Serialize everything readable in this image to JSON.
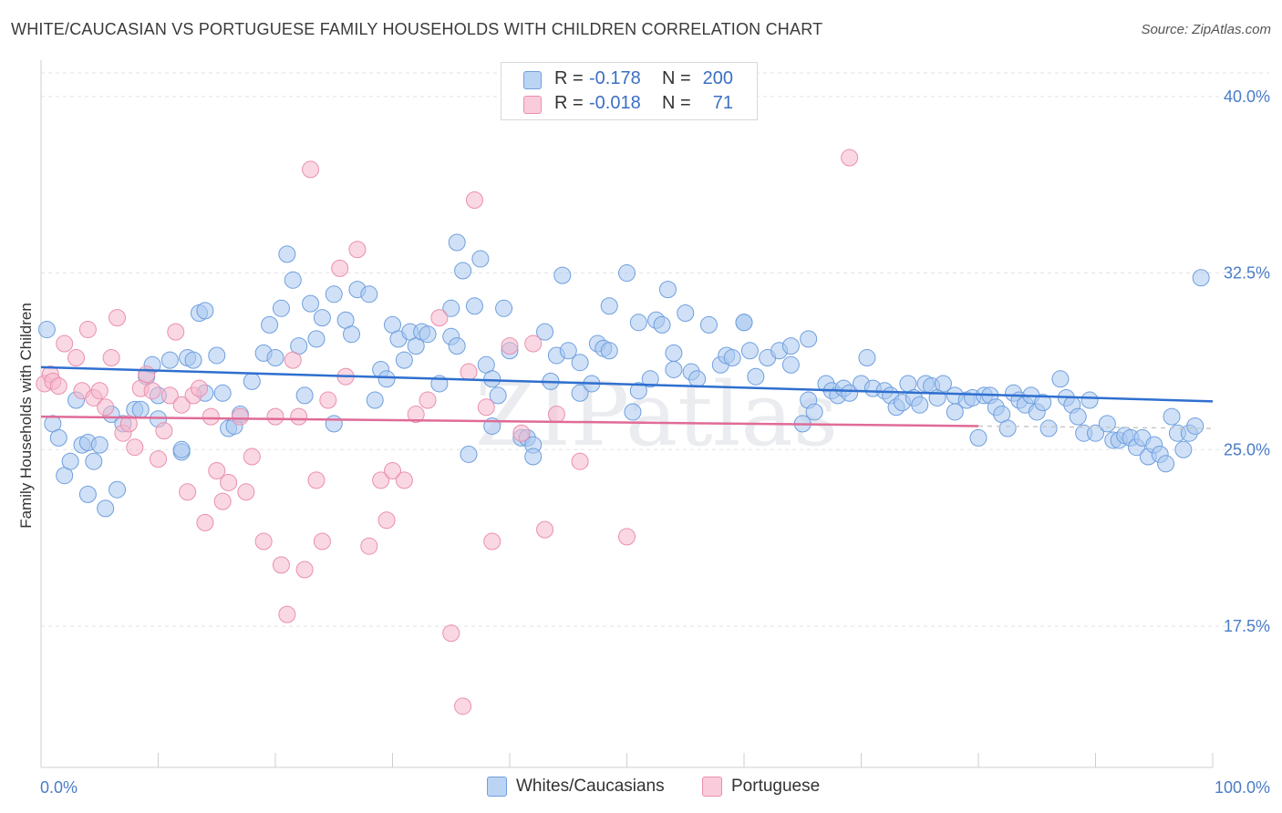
{
  "title": "WHITE/CAUCASIAN VS PORTUGUESE FAMILY HOUSEHOLDS WITH CHILDREN CORRELATION CHART",
  "source": "Source: ZipAtlas.com",
  "watermark": "ZIPatlas",
  "legend": {
    "r_label": "R =",
    "n_label": "N =",
    "rows": [
      {
        "name": "Whites/Caucasians",
        "r": "-0.178",
        "n": "200",
        "color": "#a9c8f0"
      },
      {
        "name": "Portuguese",
        "r": "-0.018",
        "n": "71",
        "color": "#f6b8cc"
      }
    ]
  },
  "chart_data": {
    "type": "scatter",
    "title": "WHITE/CAUCASIAN VS PORTUGUESE FAMILY HOUSEHOLDS WITH CHILDREN CORRELATION CHART",
    "xlabel": "",
    "ylabel": "Family Households with Children",
    "xlim": [
      0,
      100
    ],
    "ylim": [
      11.5,
      41.0
    ],
    "x_tick_labels": [
      "0.0%",
      "100.0%"
    ],
    "y_ticks": [
      {
        "value": 17.5,
        "label": "17.5%"
      },
      {
        "value": 25.0,
        "label": "25.0%"
      },
      {
        "value": 32.5,
        "label": "32.5%"
      },
      {
        "value": 40.0,
        "label": "40.0%"
      }
    ],
    "grid": true,
    "series": [
      {
        "name": "Whites/Caucasians",
        "color": "#a9c8f0",
        "stroke": "#6f9fde",
        "line_color": "#2f6fcf",
        "trend": {
          "x": [
            0,
            100
          ],
          "y": [
            28.5,
            27.05
          ]
        },
        "points": [
          [
            0.5,
            30.1
          ],
          [
            1,
            26.1
          ],
          [
            1.5,
            25.5
          ],
          [
            2,
            23.9
          ],
          [
            2.5,
            24.5
          ],
          [
            3,
            27.1
          ],
          [
            3.5,
            25.2
          ],
          [
            4,
            25.3
          ],
          [
            4,
            23.1
          ],
          [
            4.5,
            24.5
          ],
          [
            5,
            25.2
          ],
          [
            5.5,
            22.5
          ],
          [
            6,
            26.5
          ],
          [
            6.5,
            23.3
          ],
          [
            7,
            26.1
          ],
          [
            8,
            26.7
          ],
          [
            8.5,
            26.7
          ],
          [
            9,
            28.1
          ],
          [
            9.5,
            28.6
          ],
          [
            10,
            27.3
          ],
          [
            10,
            26.3
          ],
          [
            11,
            28.8
          ],
          [
            12,
            24.9
          ],
          [
            12,
            25
          ],
          [
            12.5,
            28.9
          ],
          [
            13,
            28.8
          ],
          [
            13.5,
            30.8
          ],
          [
            14,
            27.4
          ],
          [
            14,
            30.9
          ],
          [
            15,
            29
          ],
          [
            15.5,
            27.4
          ],
          [
            16,
            25.9
          ],
          [
            16.5,
            26
          ],
          [
            17,
            26.5
          ],
          [
            18,
            27.9
          ],
          [
            19,
            29.1
          ],
          [
            19.5,
            30.3
          ],
          [
            20,
            28.9
          ],
          [
            20.5,
            31
          ],
          [
            21,
            33.3
          ],
          [
            21.5,
            32.2
          ],
          [
            22,
            29.4
          ],
          [
            22.5,
            27.3
          ],
          [
            23,
            31.2
          ],
          [
            23.5,
            29.7
          ],
          [
            24,
            30.6
          ],
          [
            25,
            26.1
          ],
          [
            25,
            31.6
          ],
          [
            26,
            30.5
          ],
          [
            26.5,
            29.9
          ],
          [
            27,
            31.8
          ],
          [
            28,
            31.6
          ],
          [
            28.5,
            27.1
          ],
          [
            29,
            28.4
          ],
          [
            29.5,
            28
          ],
          [
            30,
            30.3
          ],
          [
            30.5,
            29.7
          ],
          [
            31,
            28.8
          ],
          [
            31.5,
            30
          ],
          [
            32,
            29.4
          ],
          [
            32.5,
            30
          ],
          [
            33,
            29.9
          ],
          [
            34,
            27.8
          ],
          [
            35,
            31
          ],
          [
            35,
            29.8
          ],
          [
            35.5,
            29.4
          ],
          [
            35.5,
            33.8
          ],
          [
            36,
            32.6
          ],
          [
            36.5,
            24.8
          ],
          [
            37,
            31.1
          ],
          [
            37.5,
            33.1
          ],
          [
            38,
            28.6
          ],
          [
            38.5,
            26
          ],
          [
            38.5,
            28
          ],
          [
            39,
            27.3
          ],
          [
            39.5,
            31
          ],
          [
            40,
            29.2
          ],
          [
            41,
            25.5
          ],
          [
            41.5,
            25.5
          ],
          [
            42,
            25.2
          ],
          [
            42,
            24.7
          ],
          [
            43,
            30
          ],
          [
            43.5,
            27.9
          ],
          [
            44,
            29
          ],
          [
            44.5,
            32.4
          ],
          [
            45,
            29.2
          ],
          [
            46,
            27.4
          ],
          [
            46,
            28.7
          ],
          [
            47,
            27.8
          ],
          [
            47.5,
            29.5
          ],
          [
            48,
            29.3
          ],
          [
            48.5,
            31.1
          ],
          [
            48.5,
            29.2
          ],
          [
            50,
            32.5
          ],
          [
            50.5,
            26.6
          ],
          [
            51,
            30.4
          ],
          [
            51,
            27.5
          ],
          [
            52,
            28
          ],
          [
            52.5,
            30.5
          ],
          [
            53,
            30.3
          ],
          [
            53.5,
            31.8
          ],
          [
            54,
            28.4
          ],
          [
            54,
            29.1
          ],
          [
            55,
            30.8
          ],
          [
            55.5,
            28.3
          ],
          [
            56,
            28
          ],
          [
            57,
            30.3
          ],
          [
            58,
            28.6
          ],
          [
            58.5,
            29
          ],
          [
            59,
            28.9
          ],
          [
            60,
            30.4
          ],
          [
            60,
            30.4
          ],
          [
            60.5,
            29.2
          ],
          [
            61,
            28.1
          ],
          [
            62,
            28.9
          ],
          [
            63,
            29.2
          ],
          [
            64,
            29.4
          ],
          [
            64,
            28.6
          ],
          [
            65,
            26.1
          ],
          [
            65.5,
            27.1
          ],
          [
            65.5,
            29.7
          ],
          [
            66,
            26.6
          ],
          [
            67,
            27.8
          ],
          [
            67.5,
            27.5
          ],
          [
            68,
            27.3
          ],
          [
            68.5,
            27.6
          ],
          [
            69,
            27.4
          ],
          [
            70,
            27.8
          ],
          [
            70.5,
            28.9
          ],
          [
            71,
            27.6
          ],
          [
            72,
            27.5
          ],
          [
            72.5,
            27.3
          ],
          [
            73,
            26.8
          ],
          [
            73.5,
            27
          ],
          [
            74,
            27.8
          ],
          [
            74.5,
            27.2
          ],
          [
            75,
            26.9
          ],
          [
            75.5,
            27.8
          ],
          [
            76,
            27.7
          ],
          [
            76.5,
            27.2
          ],
          [
            77,
            27.8
          ],
          [
            78,
            27.3
          ],
          [
            78,
            26.6
          ],
          [
            79,
            27.1
          ],
          [
            79.5,
            27.2
          ],
          [
            80,
            25.5
          ],
          [
            80.5,
            27.3
          ],
          [
            81,
            27.3
          ],
          [
            81.5,
            26.8
          ],
          [
            82,
            26.5
          ],
          [
            82.5,
            25.9
          ],
          [
            83,
            27.4
          ],
          [
            83.5,
            27.1
          ],
          [
            84,
            26.9
          ],
          [
            84.5,
            27.3
          ],
          [
            85,
            26.6
          ],
          [
            85.5,
            27
          ],
          [
            86,
            25.9
          ],
          [
            87,
            28
          ],
          [
            87.5,
            27.2
          ],
          [
            88,
            26.9
          ],
          [
            88.5,
            26.4
          ],
          [
            89,
            25.7
          ],
          [
            89.5,
            27.1
          ],
          [
            90,
            25.7
          ],
          [
            91,
            26.1
          ],
          [
            91.5,
            25.4
          ],
          [
            92,
            25.4
          ],
          [
            92.5,
            25.6
          ],
          [
            93,
            25.5
          ],
          [
            93.5,
            25.1
          ],
          [
            94,
            25.5
          ],
          [
            94.5,
            24.7
          ],
          [
            95,
            25.2
          ],
          [
            95.5,
            24.8
          ],
          [
            96,
            24.4
          ],
          [
            96.5,
            26.4
          ],
          [
            97,
            25.7
          ],
          [
            97.5,
            25
          ],
          [
            98,
            25.7
          ],
          [
            98.5,
            26
          ],
          [
            99,
            32.3
          ]
        ]
      },
      {
        "name": "Portuguese",
        "color": "#f6b8cc",
        "stroke": "#ea8fae",
        "line_color": "#e06b97",
        "trend": {
          "x": [
            0,
            80
          ],
          "y": [
            26.4,
            26.0
          ]
        },
        "points": [
          [
            0.3,
            27.8
          ],
          [
            0.8,
            28.2
          ],
          [
            1,
            27.9
          ],
          [
            1.5,
            27.7
          ],
          [
            2,
            29.5
          ],
          [
            3,
            28.9
          ],
          [
            3.5,
            27.5
          ],
          [
            4,
            30.1
          ],
          [
            4.5,
            27.2
          ],
          [
            5,
            27.5
          ],
          [
            5.5,
            26.8
          ],
          [
            6,
            28.9
          ],
          [
            6.5,
            30.6
          ],
          [
            7,
            25.7
          ],
          [
            7.5,
            26.1
          ],
          [
            8,
            25.1
          ],
          [
            8.5,
            27.6
          ],
          [
            9,
            28.2
          ],
          [
            9.5,
            27.5
          ],
          [
            10,
            24.6
          ],
          [
            10.5,
            25.8
          ],
          [
            11,
            27.3
          ],
          [
            11.5,
            30
          ],
          [
            12,
            26.9
          ],
          [
            12.5,
            23.2
          ],
          [
            13,
            27.3
          ],
          [
            13.5,
            27.6
          ],
          [
            14,
            21.9
          ],
          [
            14.5,
            26.4
          ],
          [
            15,
            24.1
          ],
          [
            15.5,
            22.8
          ],
          [
            16,
            23.6
          ],
          [
            17,
            26.4
          ],
          [
            17.5,
            23.2
          ],
          [
            18,
            24.7
          ],
          [
            19,
            21.1
          ],
          [
            20,
            26.4
          ],
          [
            20.5,
            20.1
          ],
          [
            21,
            18
          ],
          [
            21.5,
            28.8
          ],
          [
            22,
            26.4
          ],
          [
            22.5,
            19.9
          ],
          [
            23,
            36.9
          ],
          [
            23.5,
            23.7
          ],
          [
            24,
            21.1
          ],
          [
            24.5,
            27.1
          ],
          [
            25.5,
            32.7
          ],
          [
            26,
            28.1
          ],
          [
            27,
            33.5
          ],
          [
            28,
            20.9
          ],
          [
            29,
            23.7
          ],
          [
            29.5,
            22
          ],
          [
            30,
            24.1
          ],
          [
            31,
            23.7
          ],
          [
            32,
            26.5
          ],
          [
            33,
            27.1
          ],
          [
            34,
            30.6
          ],
          [
            35,
            17.2
          ],
          [
            36,
            14.1
          ],
          [
            36.5,
            28.3
          ],
          [
            37,
            35.6
          ],
          [
            38,
            26.8
          ],
          [
            38.5,
            21.1
          ],
          [
            40,
            29.4
          ],
          [
            41,
            25.7
          ],
          [
            42,
            29.5
          ],
          [
            43,
            21.6
          ],
          [
            44,
            26.5
          ],
          [
            46,
            24.5
          ],
          [
            50,
            21.3
          ],
          [
            69,
            37.4
          ]
        ]
      }
    ]
  }
}
